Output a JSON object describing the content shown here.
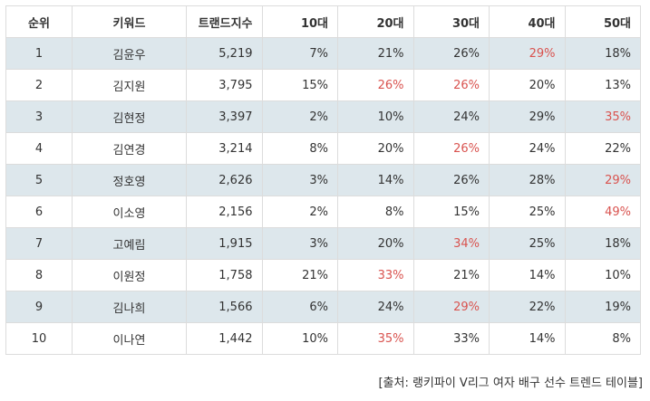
{
  "table": {
    "headers": [
      "순위",
      "키워드",
      "트랜드지수",
      "10대",
      "20대",
      "30대",
      "40대",
      "50대"
    ],
    "rows": [
      {
        "rank": "1",
        "keyword": "김윤우",
        "score": "5,219",
        "p10": "7%",
        "p20": "21%",
        "p30": "26%",
        "p40": "29%",
        "p50": "18%"
      },
      {
        "rank": "2",
        "keyword": "김지원",
        "score": "3,795",
        "p10": "15%",
        "p20": "26%",
        "p30": "26%",
        "p40": "20%",
        "p50": "13%"
      },
      {
        "rank": "3",
        "keyword": "김현정",
        "score": "3,397",
        "p10": "2%",
        "p20": "10%",
        "p30": "24%",
        "p40": "29%",
        "p50": "35%"
      },
      {
        "rank": "4",
        "keyword": "김연경",
        "score": "3,214",
        "p10": "8%",
        "p20": "20%",
        "p30": "26%",
        "p40": "24%",
        "p50": "22%"
      },
      {
        "rank": "5",
        "keyword": "정호영",
        "score": "2,626",
        "p10": "3%",
        "p20": "14%",
        "p30": "26%",
        "p40": "28%",
        "p50": "29%"
      },
      {
        "rank": "6",
        "keyword": "이소영",
        "score": "2,156",
        "p10": "2%",
        "p20": "8%",
        "p30": "15%",
        "p40": "25%",
        "p50": "49%"
      },
      {
        "rank": "7",
        "keyword": "고예림",
        "score": "1,915",
        "p10": "3%",
        "p20": "20%",
        "p30": "34%",
        "p40": "25%",
        "p50": "18%"
      },
      {
        "rank": "8",
        "keyword": "이원정",
        "score": "1,758",
        "p10": "21%",
        "p20": "33%",
        "p30": "21%",
        "p40": "14%",
        "p50": "10%"
      },
      {
        "rank": "9",
        "keyword": "김나희",
        "score": "1,566",
        "p10": "6%",
        "p20": "24%",
        "p30": "29%",
        "p40": "22%",
        "p50": "19%"
      },
      {
        "rank": "10",
        "keyword": "이나연",
        "score": "1,442",
        "p10": "10%",
        "p20": "35%",
        "p30": "33%",
        "p40": "14%",
        "p50": "8%"
      }
    ],
    "highlights": [
      {
        "row": 0,
        "col": "p40"
      },
      {
        "row": 1,
        "col": "p20"
      },
      {
        "row": 1,
        "col": "p30"
      },
      {
        "row": 2,
        "col": "p50"
      },
      {
        "row": 3,
        "col": "p30"
      },
      {
        "row": 4,
        "col": "p50"
      },
      {
        "row": 5,
        "col": "p50"
      },
      {
        "row": 6,
        "col": "p30"
      },
      {
        "row": 7,
        "col": "p20"
      },
      {
        "row": 8,
        "col": "p30"
      },
      {
        "row": 9,
        "col": "p20"
      }
    ]
  },
  "colors": {
    "stripe": "#dde7ec",
    "highlight": "#d9534f",
    "border": "#dcdcdc"
  },
  "caption": "[출처: 랭키파이 V리그 여자 배구 선수 트렌드 테이블]"
}
